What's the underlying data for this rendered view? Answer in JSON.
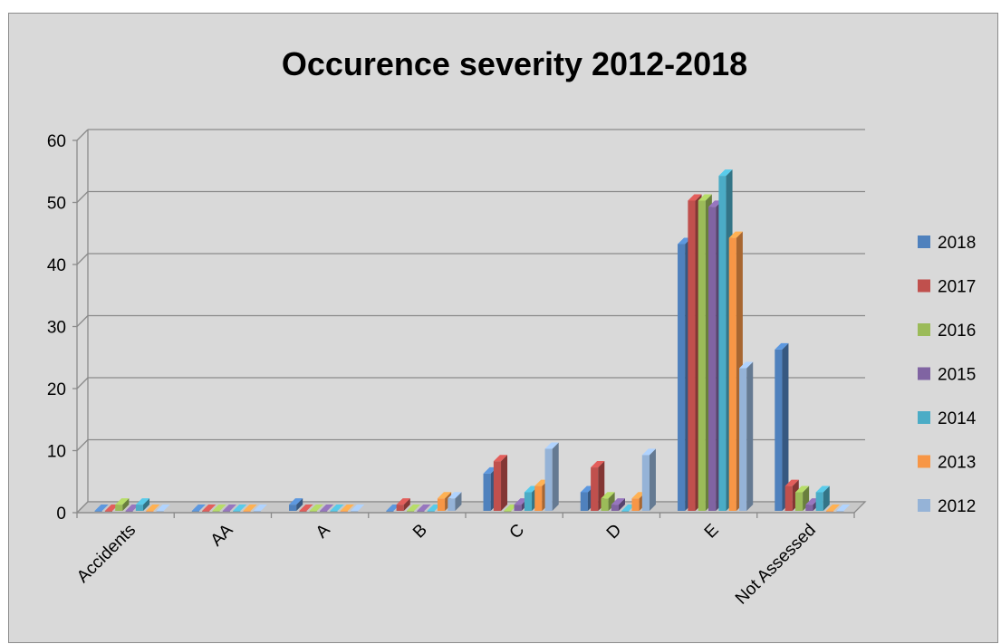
{
  "chart_data": {
    "type": "bar",
    "title": "Occurence severity 2012-2018",
    "xlabel": "",
    "ylabel": "",
    "ylim": [
      0,
      60
    ],
    "yticks": [
      0,
      10,
      20,
      30,
      40,
      50,
      60
    ],
    "grid": true,
    "legend_position": "right",
    "categories": [
      "Accidents",
      "AA",
      "A",
      "B",
      "C",
      "D",
      "E",
      "Not Assessed"
    ],
    "series": [
      {
        "name": "2018",
        "color": "#4f81bd",
        "values": [
          0,
          0,
          1,
          0,
          6,
          3,
          43,
          26
        ]
      },
      {
        "name": "2017",
        "color": "#c0504d",
        "values": [
          0,
          0,
          0,
          1,
          8,
          7,
          50,
          4
        ]
      },
      {
        "name": "2016",
        "color": "#9bbb59",
        "values": [
          1,
          0,
          0,
          0,
          0,
          2,
          50,
          3
        ]
      },
      {
        "name": "2015",
        "color": "#8064a2",
        "values": [
          0,
          0,
          0,
          0,
          1,
          1,
          49,
          1
        ]
      },
      {
        "name": "2014",
        "color": "#4bacc6",
        "values": [
          1,
          0,
          0,
          0,
          3,
          0,
          54,
          3
        ]
      },
      {
        "name": "2013",
        "color": "#f79646",
        "values": [
          0,
          0,
          0,
          2,
          4,
          2,
          44,
          0
        ]
      },
      {
        "name": "2012",
        "color": "#95b3d7",
        "values": [
          0,
          0,
          0,
          2,
          10,
          9,
          23,
          0
        ]
      }
    ]
  }
}
